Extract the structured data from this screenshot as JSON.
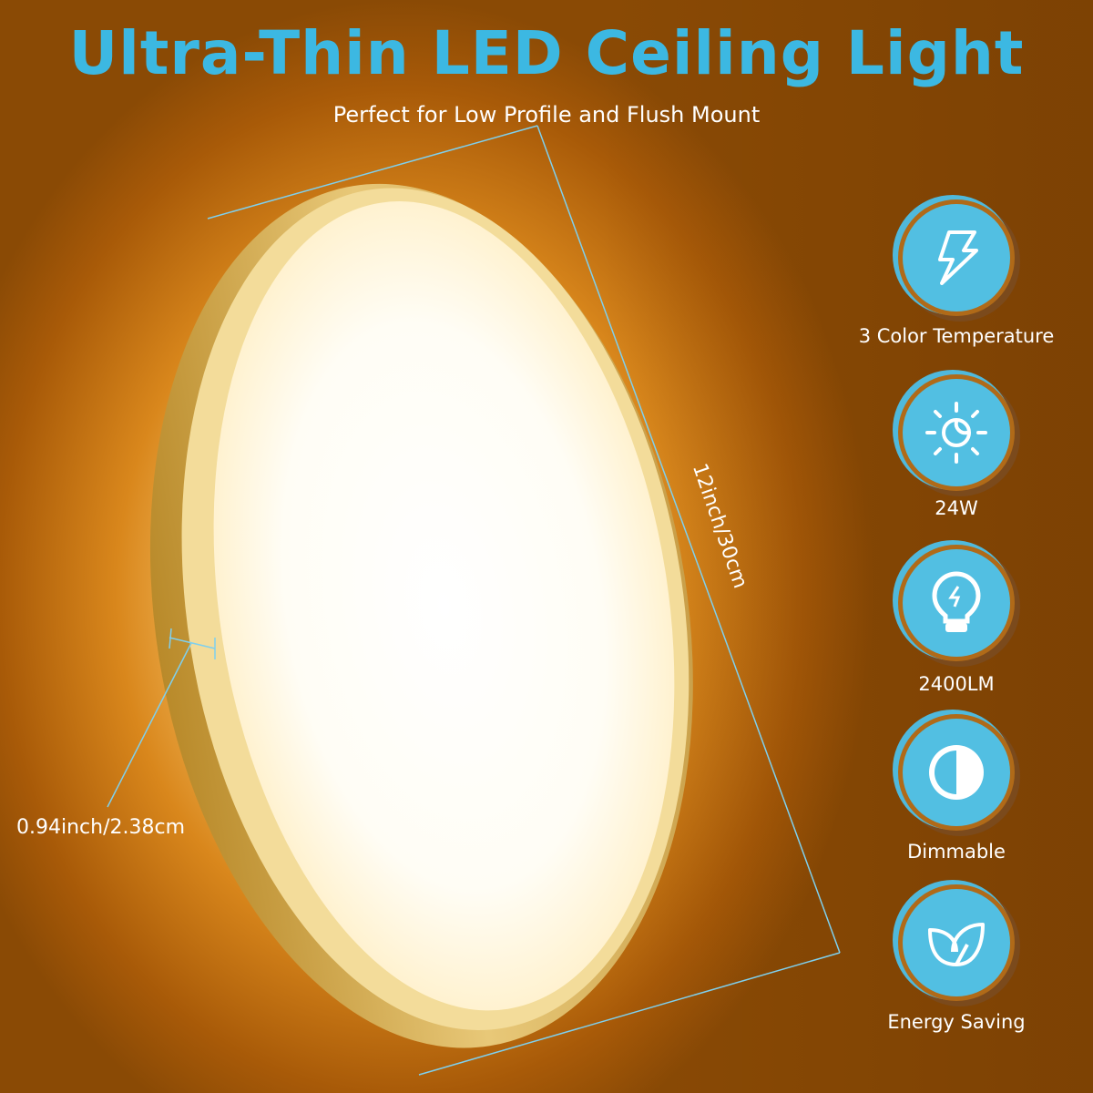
{
  "title": "Ultra-Thin LED Ceiling Light",
  "subtitle": "Perfect for Low Profile and Flush Mount",
  "dimensions": {
    "diameter": "12inch/30cm",
    "thickness": "0.94inch/2.38cm"
  },
  "features": [
    {
      "label": "3 Color Temperature",
      "icon": "lightning-icon"
    },
    {
      "label": "24W",
      "icon": "sun-moon-icon"
    },
    {
      "label": "2400LM",
      "icon": "light-bulb-icon"
    },
    {
      "label": "Dimmable",
      "icon": "half-circle-icon"
    },
    {
      "label": "Energy Saving",
      "icon": "leaf-icon"
    }
  ],
  "colors": {
    "accent": "#3cb8e2",
    "icon_bg": "#52bfe2",
    "ring": "#d6b25a"
  }
}
